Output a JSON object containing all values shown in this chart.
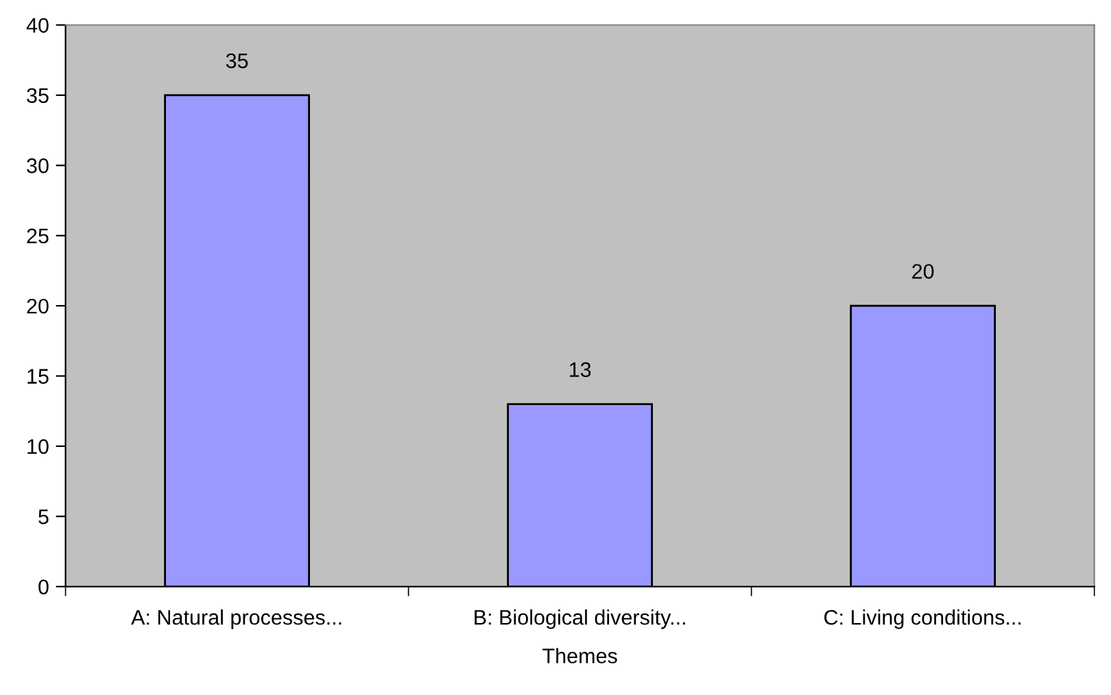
{
  "chart_data": {
    "type": "bar",
    "xlabel": "Themes",
    "categories": [
      "A: Natural processes...",
      "B: Biological diversity...",
      "C: Living conditions..."
    ],
    "values": [
      35,
      13,
      20
    ],
    "color": "#9999ff",
    "ylim": [
      0,
      40
    ],
    "yticks": [
      0,
      5,
      10,
      15,
      20,
      25,
      30,
      35,
      40
    ],
    "data_labels": true,
    "grid": false,
    "legend": false
  }
}
